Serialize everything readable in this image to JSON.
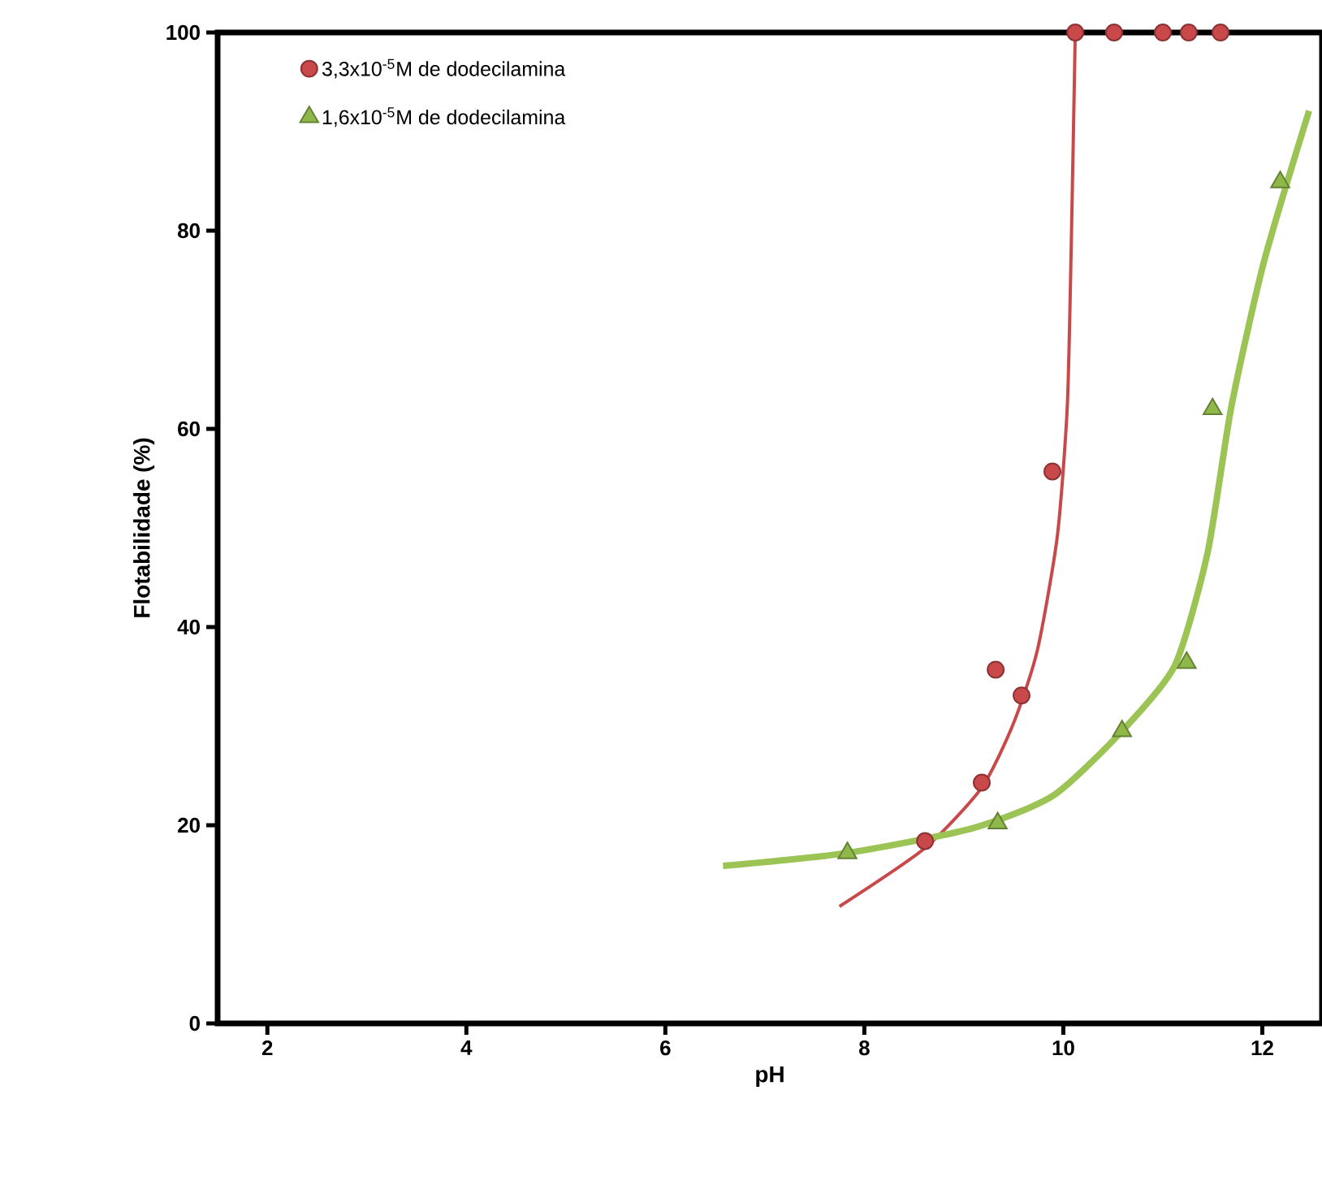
{
  "chart_data": {
    "type": "scatter",
    "xlabel": "pH",
    "ylabel": "Flotabilidade (%)",
    "xlim": [
      1.5,
      12.6
    ],
    "ylim": [
      0,
      100
    ],
    "xticks": [
      2,
      4,
      6,
      8,
      10,
      12
    ],
    "yticks": [
      0,
      20,
      40,
      60,
      80,
      100
    ],
    "legend": "top left",
    "series": [
      {
        "name": "3,3x10$^{-5}$M de dodecilamina",
        "color": "#c9484a",
        "marker": "circle",
        "x": [
          8.61,
          9.18,
          9.32,
          9.58,
          9.89,
          10.12,
          10.51,
          11.0,
          11.26,
          11.58
        ],
        "values": [
          18.4,
          24.3,
          35.7,
          33.1,
          55.7,
          100,
          100,
          100,
          100,
          100
        ]
      },
      {
        "name": "1,6x10$^{-5}$M de dodecilamina",
        "color": "#8fb84a",
        "marker": "triangle",
        "x": [
          7.83,
          9.34,
          10.59,
          11.24,
          11.5,
          12.18
        ],
        "values": [
          17.2,
          20.2,
          29.5,
          36.4,
          62.0,
          84.9
        ]
      },
      {
        "type": "line",
        "color": "#c9484a",
        "marker": "none",
        "x": [
          7.75,
          8.61,
          9.18,
          9.5,
          9.74,
          9.94,
          10.04,
          10.08,
          10.12
        ],
        "values": [
          11.8,
          17.7,
          23.8,
          30.3,
          37.7,
          49.2,
          62.3,
          78.7,
          100
        ]
      },
      {
        "type": "line",
        "color": "#9bc455",
        "marker": "none",
        "x": [
          6.58,
          7.83,
          9.09,
          9.9,
          10.59,
          11.12,
          11.45,
          11.69,
          12.02,
          12.47
        ],
        "values": [
          15.9,
          17.2,
          19.7,
          23.0,
          29.5,
          36.1,
          47.5,
          62.3,
          77.0,
          92.1
        ]
      }
    ]
  }
}
